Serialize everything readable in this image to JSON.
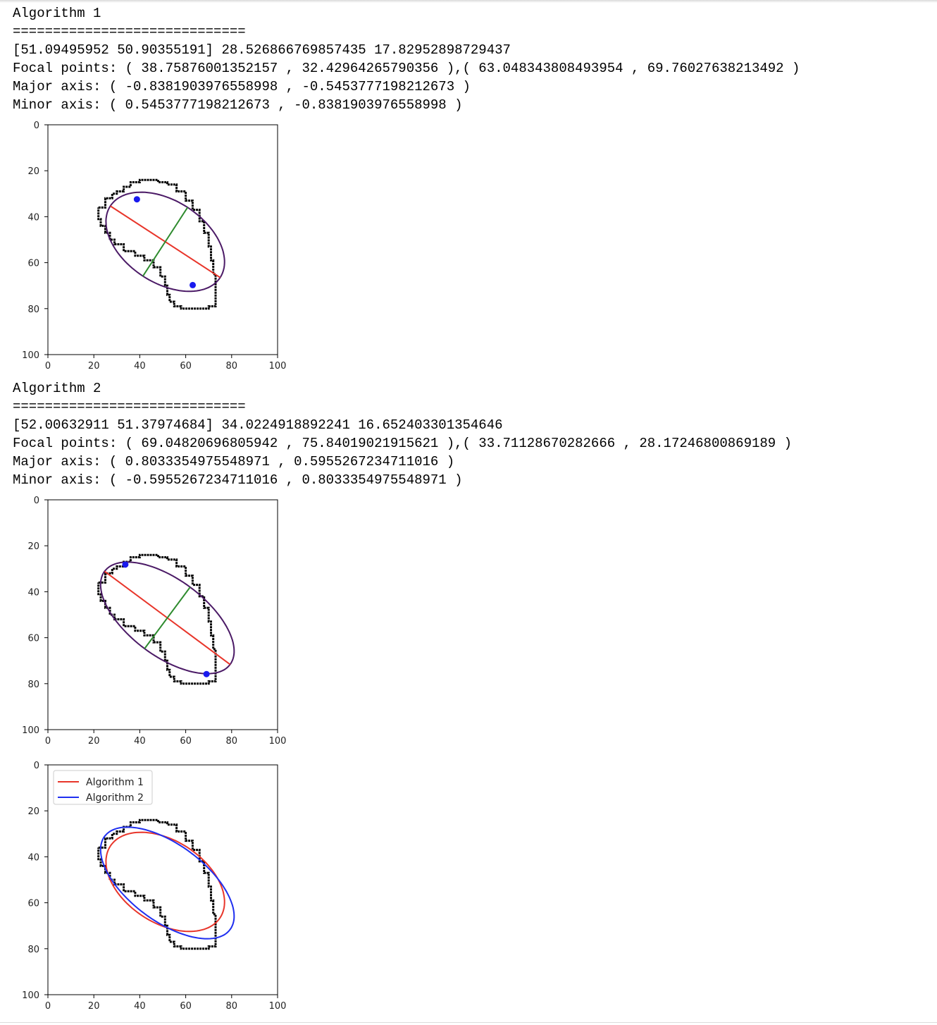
{
  "outputs": [
    {
      "name": "algorithm-1",
      "lines": [
        "Algorithm 1",
        "=============================",
        "[51.09495952 50.90355191] 28.526866769857435 17.82952898729437",
        "Focal points: ( 38.75876001352157 , 32.42964265790356 ),( 63.048343808493954 , 69.7602763821349​2 )",
        "Major axis: ( -0.8381903976558998 , -0.5453777198212673 )",
        "Minor axis: ( 0.5453777198212673 , -0.8381903976558998 )"
      ]
    },
    {
      "name": "algorithm-2",
      "lines": [
        "Algorithm 2",
        "=============================",
        "[52.00632911 51.37974684] 34.0224918892241 16.652403301354646",
        "Focal points: ( 69.04820696805942 , 75.84019021915621 ),( 33.71128670282666 , 28.17246800869189 )",
        "Major axis: ( 0.8033354975548971 , 0.5955267234711016 )",
        "Minor axis: ( -0.5955267234711016 , 0.8033354975548971 )"
      ]
    }
  ],
  "colors": {
    "contour": "#000000",
    "ellipse": "#4b1a66",
    "major": "#e8352a",
    "minor": "#2e8b2e",
    "focus": "#1a1aee",
    "alg1": "#e8352a",
    "alg2": "#1f2ff0"
  },
  "chart_data": [
    {
      "type": "scatter",
      "name": "plot-algorithm-1",
      "xlim": [
        0,
        100
      ],
      "ylim": [
        100,
        0
      ],
      "ticks": [
        0,
        20,
        40,
        60,
        80,
        100
      ],
      "tick_labels": [
        "0",
        "20",
        "40",
        "60",
        "80",
        "100"
      ],
      "contour": [
        [
          22,
          36
        ],
        [
          25,
          32
        ],
        [
          28,
          30
        ],
        [
          30,
          29
        ],
        [
          33,
          27
        ],
        [
          36,
          25
        ],
        [
          40,
          24
        ],
        [
          44,
          24
        ],
        [
          48,
          25
        ],
        [
          52,
          26
        ],
        [
          56,
          29
        ],
        [
          60,
          33
        ],
        [
          63,
          37
        ],
        [
          66,
          42
        ],
        [
          68,
          47
        ],
        [
          70,
          53
        ],
        [
          71,
          59
        ],
        [
          72,
          65
        ],
        [
          73,
          70
        ],
        [
          73,
          75
        ],
        [
          73,
          79
        ],
        [
          70,
          80
        ],
        [
          66,
          80
        ],
        [
          62,
          80
        ],
        [
          58,
          79
        ],
        [
          55,
          77
        ],
        [
          53,
          74
        ],
        [
          52,
          70
        ],
        [
          51,
          66
        ],
        [
          49,
          62
        ],
        [
          46,
          59
        ],
        [
          42,
          57
        ],
        [
          38,
          55
        ],
        [
          33,
          52
        ],
        [
          29,
          50
        ],
        [
          27,
          47
        ],
        [
          25,
          44
        ],
        [
          23,
          41
        ],
        [
          22,
          38
        ],
        [
          22,
          36
        ]
      ],
      "center": [
        51.09495952,
        50.90355191
      ],
      "semi_major": 28.526866769857435,
      "semi_minor": 17.82952898729437,
      "major_axis": [
        -0.8381903976558998,
        -0.5453777198212673
      ],
      "minor_axis": [
        0.5453777198212673,
        -0.8381903976558998
      ],
      "foci": [
        [
          38.75876001352157,
          32.42964265790356
        ],
        [
          63.048343808493954,
          69.7602763821349
        ]
      ],
      "show_axes_lines": true,
      "legend": null
    },
    {
      "type": "scatter",
      "name": "plot-algorithm-2",
      "xlim": [
        0,
        100
      ],
      "ylim": [
        100,
        0
      ],
      "ticks": [
        0,
        20,
        40,
        60,
        80,
        100
      ],
      "tick_labels": [
        "0",
        "20",
        "40",
        "60",
        "80",
        "100"
      ],
      "contour": [
        [
          22,
          36
        ],
        [
          25,
          32
        ],
        [
          28,
          30
        ],
        [
          30,
          29
        ],
        [
          33,
          27
        ],
        [
          36,
          25
        ],
        [
          40,
          24
        ],
        [
          44,
          24
        ],
        [
          48,
          25
        ],
        [
          52,
          26
        ],
        [
          56,
          29
        ],
        [
          60,
          33
        ],
        [
          63,
          37
        ],
        [
          66,
          42
        ],
        [
          68,
          47
        ],
        [
          70,
          53
        ],
        [
          71,
          59
        ],
        [
          72,
          65
        ],
        [
          73,
          70
        ],
        [
          73,
          75
        ],
        [
          73,
          79
        ],
        [
          70,
          80
        ],
        [
          66,
          80
        ],
        [
          62,
          80
        ],
        [
          58,
          79
        ],
        [
          55,
          77
        ],
        [
          53,
          74
        ],
        [
          52,
          70
        ],
        [
          51,
          66
        ],
        [
          49,
          62
        ],
        [
          46,
          59
        ],
        [
          42,
          57
        ],
        [
          38,
          55
        ],
        [
          33,
          52
        ],
        [
          29,
          50
        ],
        [
          27,
          47
        ],
        [
          25,
          44
        ],
        [
          23,
          41
        ],
        [
          22,
          38
        ],
        [
          22,
          36
        ]
      ],
      "center": [
        52.00632911,
        51.37974684
      ],
      "semi_major": 34.0224918892241,
      "semi_minor": 16.652403301354646,
      "major_axis": [
        0.8033354975548971,
        0.5955267234711016
      ],
      "minor_axis": [
        -0.5955267234711016,
        0.8033354975548971
      ],
      "foci": [
        [
          69.04820696805942,
          75.84019021915621
        ],
        [
          33.71128670282666,
          28.17246800869189
        ]
      ],
      "show_axes_lines": true,
      "legend": null
    },
    {
      "type": "line",
      "name": "plot-comparison",
      "xlim": [
        0,
        100
      ],
      "ylim": [
        100,
        0
      ],
      "ticks": [
        0,
        20,
        40,
        60,
        80,
        100
      ],
      "tick_labels": [
        "0",
        "20",
        "40",
        "60",
        "80",
        "100"
      ],
      "contour": [
        [
          22,
          36
        ],
        [
          25,
          32
        ],
        [
          28,
          30
        ],
        [
          30,
          29
        ],
        [
          33,
          27
        ],
        [
          36,
          25
        ],
        [
          40,
          24
        ],
        [
          44,
          24
        ],
        [
          48,
          25
        ],
        [
          52,
          26
        ],
        [
          56,
          29
        ],
        [
          60,
          33
        ],
        [
          63,
          37
        ],
        [
          66,
          42
        ],
        [
          68,
          47
        ],
        [
          70,
          53
        ],
        [
          71,
          59
        ],
        [
          72,
          65
        ],
        [
          73,
          70
        ],
        [
          73,
          75
        ],
        [
          73,
          79
        ],
        [
          70,
          80
        ],
        [
          66,
          80
        ],
        [
          62,
          80
        ],
        [
          58,
          79
        ],
        [
          55,
          77
        ],
        [
          53,
          74
        ],
        [
          52,
          70
        ],
        [
          51,
          66
        ],
        [
          49,
          62
        ],
        [
          46,
          59
        ],
        [
          42,
          57
        ],
        [
          38,
          55
        ],
        [
          33,
          52
        ],
        [
          29,
          50
        ],
        [
          27,
          47
        ],
        [
          25,
          44
        ],
        [
          23,
          41
        ],
        [
          22,
          38
        ],
        [
          22,
          36
        ]
      ],
      "series": [
        {
          "name": "Algorithm 1",
          "center": [
            51.09495952,
            50.90355191
          ],
          "semi_major": 28.526866769857435,
          "semi_minor": 17.82952898729437,
          "major_axis": [
            -0.8381903976558998,
            -0.5453777198212673
          ],
          "color_key": "alg1"
        },
        {
          "name": "Algorithm 2",
          "center": [
            52.00632911,
            51.37974684
          ],
          "semi_major": 34.0224918892241,
          "semi_minor": 16.652403301354646,
          "major_axis": [
            0.8033354975548971,
            0.5955267234711016
          ],
          "color_key": "alg2"
        }
      ],
      "legend": "top-left"
    }
  ]
}
